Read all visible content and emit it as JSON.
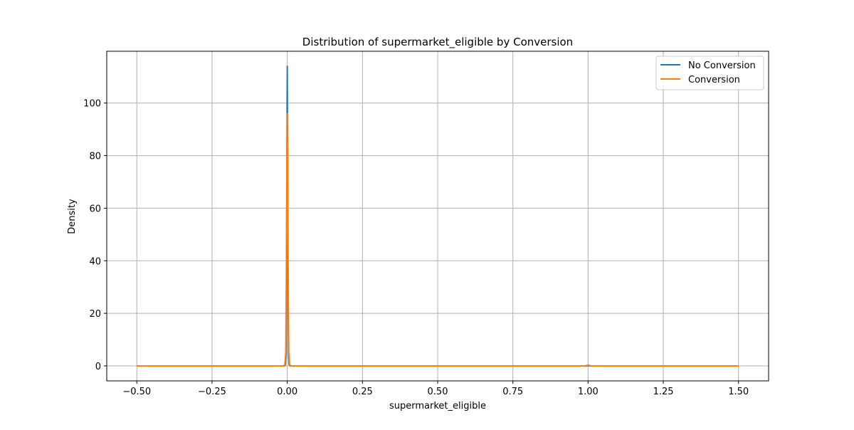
{
  "chart_data": {
    "type": "line",
    "title": "Distribution of  supermarket_eligible by Conversion",
    "xlabel": "supermarket_eligible",
    "ylabel": "Density",
    "xlim": [
      -0.6,
      1.6
    ],
    "ylim": [
      -5.7,
      119.7
    ],
    "x_ticks": [
      -0.5,
      -0.25,
      0.0,
      0.25,
      0.5,
      0.75,
      1.0,
      1.25,
      1.5
    ],
    "x_tick_labels": [
      "−0.50",
      "−0.25",
      "0.00",
      "0.25",
      "0.50",
      "0.75",
      "1.00",
      "1.25",
      "1.50"
    ],
    "y_ticks": [
      0,
      20,
      40,
      60,
      80,
      100
    ],
    "y_tick_labels": [
      "0",
      "20",
      "40",
      "60",
      "80",
      "100"
    ],
    "grid": true,
    "legend_position": "top-right",
    "series": [
      {
        "name": "No Conversion",
        "color": "#1f77b4",
        "x": [
          -0.5,
          -0.01,
          -0.006,
          -0.004,
          -0.002,
          -0.001,
          0.0,
          0.001,
          0.002,
          0.004,
          0.006,
          0.01,
          0.5,
          0.99,
          1.0,
          1.01,
          1.5
        ],
        "y": [
          0,
          0,
          0.5,
          5,
          40,
          85,
          114,
          85,
          40,
          5,
          0.5,
          0,
          0,
          0,
          0.1,
          0,
          0
        ]
      },
      {
        "name": "Conversion",
        "color": "#ff7f0e",
        "x": [
          -0.5,
          -0.012,
          -0.008,
          -0.005,
          -0.003,
          -0.0015,
          0.0,
          0.0015,
          0.003,
          0.005,
          0.008,
          0.012,
          0.5,
          0.99,
          1.0,
          1.01,
          1.5
        ],
        "y": [
          0,
          0,
          0.5,
          5,
          35,
          75,
          96,
          75,
          35,
          5,
          0.5,
          0,
          0,
          0,
          0.3,
          0,
          0
        ]
      }
    ]
  }
}
